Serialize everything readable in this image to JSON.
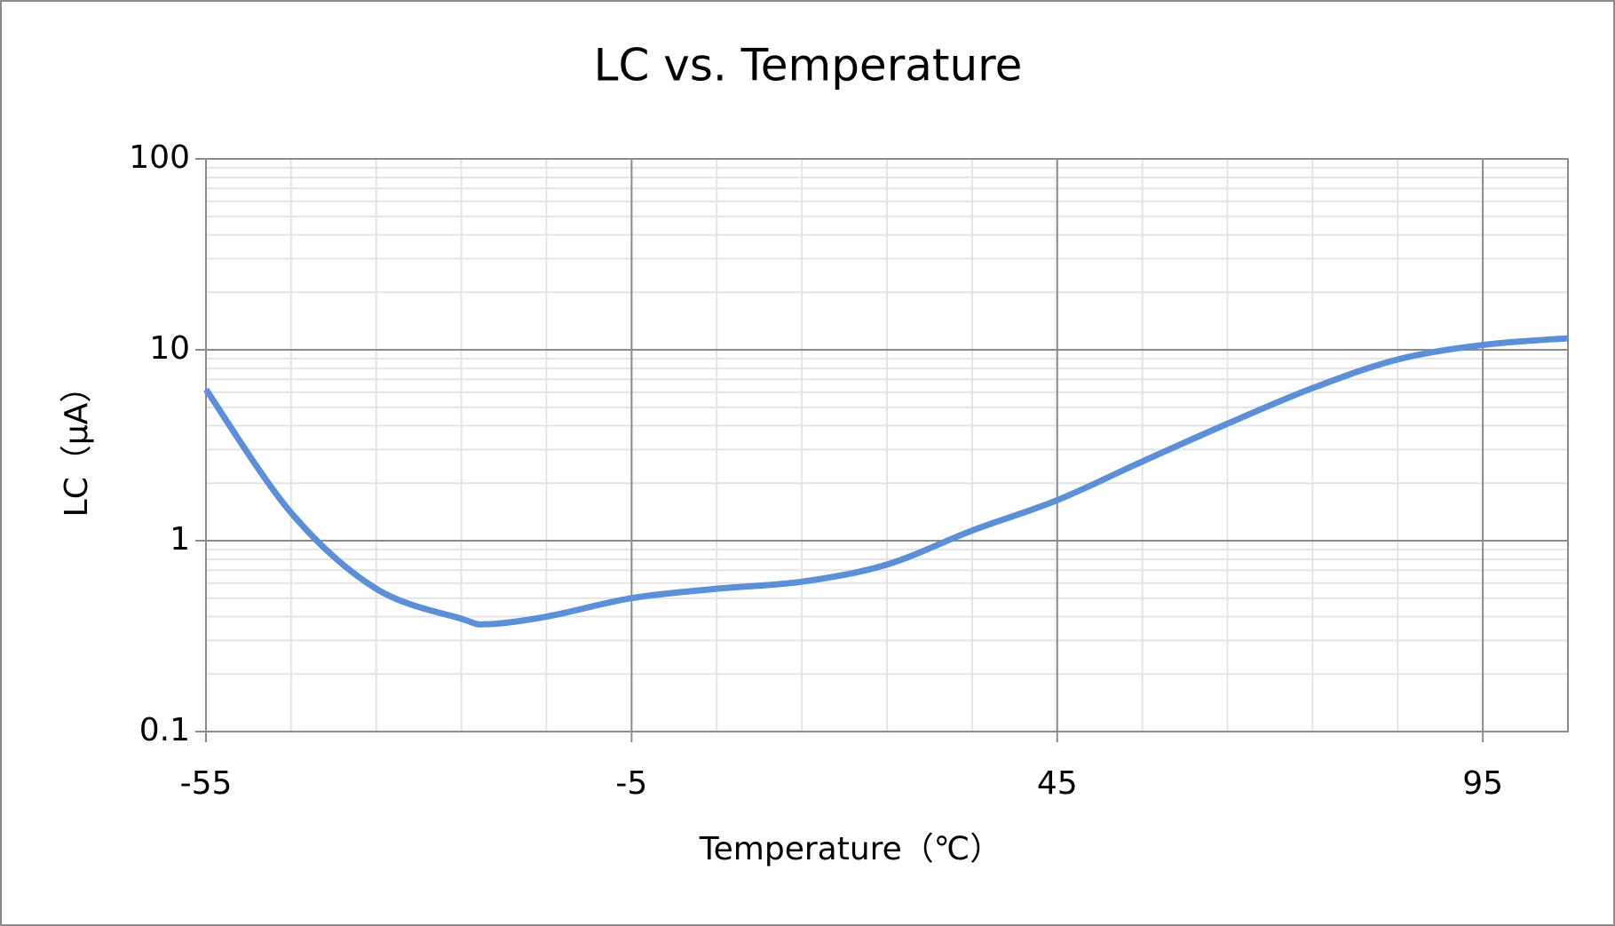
{
  "chart_data": {
    "type": "line",
    "title": "LC vs. Temperature",
    "x_label": "Temperature（℃）",
    "y_label": "LC（μA）",
    "x": [
      -55,
      -45,
      -35,
      -25,
      -22,
      -15,
      -5,
      5,
      15,
      25,
      35,
      45,
      55,
      65,
      75,
      85,
      95,
      105
    ],
    "series": [
      {
        "color": "#5b8fd8",
        "values": [
          6.2,
          1.4,
          0.56,
          0.39,
          0.365,
          0.4,
          0.5,
          0.56,
          0.61,
          0.75,
          1.13,
          1.63,
          2.6,
          4.1,
          6.3,
          8.9,
          10.6,
          11.5
        ]
      }
    ],
    "xlim": [
      -55,
      105
    ],
    "xticks": [
      -55,
      -5,
      45,
      95
    ],
    "ylim": [
      0.1,
      100
    ],
    "yticks": [
      0.1,
      1,
      10,
      100
    ],
    "y_scale": "log",
    "grid": true,
    "minor_grid": true
  }
}
